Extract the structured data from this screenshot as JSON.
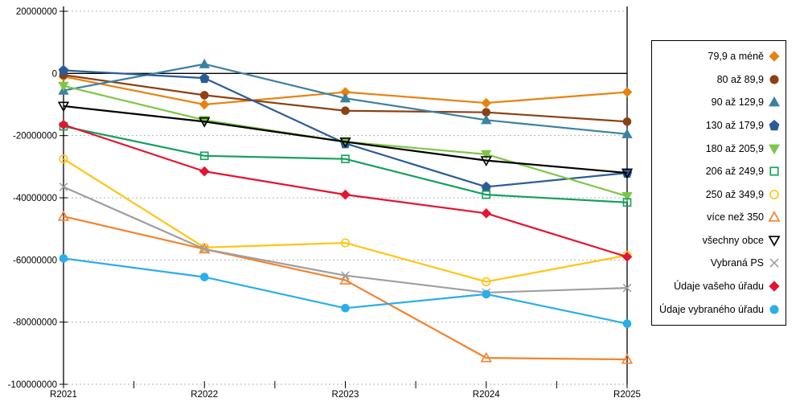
{
  "chart_data": {
    "type": "line",
    "title": "",
    "xlabel": "",
    "ylabel": "",
    "categories": [
      "R2021",
      "R2022",
      "R2023",
      "R2024",
      "R2025"
    ],
    "ylim": [
      -100000000,
      20000000
    ],
    "ytick_step": 20000000,
    "ytick_labels": [
      "20000000",
      "0",
      "-20000000",
      "-40000000",
      "-60000000",
      "-80000000",
      "-100000000"
    ],
    "grid": "horizontal-dashed",
    "grid_color": "#b3b3b3",
    "axis_color": "#000000",
    "legend_position": "right",
    "series": [
      {
        "name": "79,9 a méně",
        "marker": "diamond",
        "fill": "filled",
        "color": "#E8820F",
        "values": [
          -1000000,
          -10000000,
          -6000000,
          -9500000,
          -6000000
        ]
      },
      {
        "name": "80 až 89,9",
        "marker": "circle",
        "fill": "filled",
        "color": "#8C4115",
        "values": [
          -500000,
          -7000000,
          -12000000,
          -12500000,
          -15500000
        ]
      },
      {
        "name": "90 až 129,9",
        "marker": "triangle-up",
        "fill": "filled",
        "color": "#3C81A0",
        "values": [
          -5500000,
          3000000,
          -8000000,
          -15000000,
          -19500000
        ]
      },
      {
        "name": "130 až 179,9",
        "marker": "pentagon",
        "fill": "filled",
        "color": "#2C5C98",
        "values": [
          1000000,
          -1500000,
          -22500000,
          -36500000,
          -32000000
        ]
      },
      {
        "name": "180 až 205,9",
        "marker": "triangle-down",
        "fill": "filled",
        "color": "#7EC647",
        "values": [
          -4000000,
          -15000000,
          -22000000,
          -26000000,
          -39500000
        ]
      },
      {
        "name": "206 až 249,9",
        "marker": "square",
        "fill": "open",
        "color": "#12A15B",
        "values": [
          -17000000,
          -26500000,
          -27500000,
          -39000000,
          -41500000
        ]
      },
      {
        "name": "250 až 349,9",
        "marker": "circle",
        "fill": "open",
        "color": "#FFC513",
        "values": [
          -27500000,
          -56000000,
          -54500000,
          -67000000,
          -58500000
        ]
      },
      {
        "name": "více než 350",
        "marker": "triangle-up",
        "fill": "open",
        "color": "#F5822D",
        "values": [
          -46000000,
          -56500000,
          -66500000,
          -91500000,
          -92000000
        ]
      },
      {
        "name": "všechny obce",
        "marker": "triangle-down",
        "fill": "open",
        "color": "#000000",
        "values": [
          -10500000,
          -15500000,
          -22000000,
          -28000000,
          -32000000
        ]
      },
      {
        "name": "Vybraná PS",
        "marker": "x",
        "fill": "line",
        "color": "#9E9E9E",
        "values": [
          -36500000,
          -56500000,
          -65000000,
          -70500000,
          -69000000
        ]
      },
      {
        "name": "Údaje vašeho úřadu",
        "marker": "diamond",
        "fill": "filled",
        "color": "#E51332",
        "values": [
          -16500000,
          -31500000,
          -39000000,
          -45000000,
          -59000000
        ]
      },
      {
        "name": "Údaje vybraného úřadu",
        "marker": "circle",
        "fill": "filled",
        "color": "#2BAEE8",
        "values": [
          -59500000,
          -65500000,
          -75500000,
          -71000000,
          -80500000
        ]
      }
    ]
  }
}
